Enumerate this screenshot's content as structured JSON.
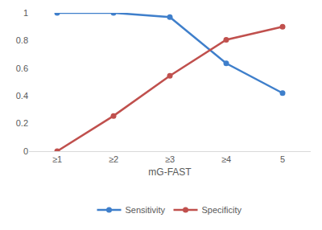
{
  "chart_data": {
    "type": "line",
    "x_label": "mG-FAST",
    "categories": [
      "≥1",
      "≥2",
      "≥3",
      "≥4",
      "5"
    ],
    "series": [
      {
        "name": "Sensitivity",
        "color": "#3f7fcb",
        "marker": "circle",
        "values": [
          1,
          1,
          0.97,
          0.635,
          0.42
        ]
      },
      {
        "name": "Specificity",
        "color": "#c0504d",
        "marker": "circle",
        "values": [
          0,
          0.255,
          0.545,
          0.805,
          0.9
        ]
      }
    ],
    "ylim": [
      0,
      1
    ],
    "yticks": [
      0,
      0.2,
      0.4,
      0.6,
      0.8,
      1
    ],
    "grid": false,
    "legend": "bottom"
  }
}
